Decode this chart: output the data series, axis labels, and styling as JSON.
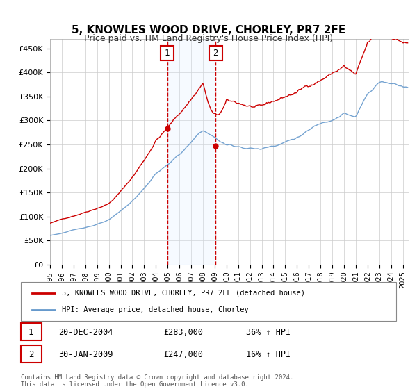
{
  "title": "5, KNOWLES WOOD DRIVE, CHORLEY, PR7 2FE",
  "subtitle": "Price paid vs. HM Land Registry's House Price Index (HPI)",
  "ylabel_ticks": [
    "£0",
    "£50K",
    "£100K",
    "£150K",
    "£200K",
    "£250K",
    "£300K",
    "£350K",
    "£400K",
    "£450K"
  ],
  "ytick_values": [
    0,
    50000,
    100000,
    150000,
    200000,
    250000,
    300000,
    350000,
    400000,
    450000
  ],
  "ylim": [
    0,
    470000
  ],
  "xlim_start": 1995.0,
  "xlim_end": 2025.5,
  "legend_line1": "5, KNOWLES WOOD DRIVE, CHORLEY, PR7 2FE (detached house)",
  "legend_line2": "HPI: Average price, detached house, Chorley",
  "sale1_label": "1",
  "sale1_date": "20-DEC-2004",
  "sale1_price": "£283,000",
  "sale1_hpi": "36% ↑ HPI",
  "sale1_year": 2004.97,
  "sale1_value": 283000,
  "sale2_label": "2",
  "sale2_date": "30-JAN-2009",
  "sale2_price": "£247,000",
  "sale2_hpi": "16% ↑ HPI",
  "sale2_year": 2009.08,
  "sale2_value": 247000,
  "red_color": "#cc0000",
  "blue_color": "#6699cc",
  "shade_color": "#ddeeff",
  "copyright_text": "Contains HM Land Registry data © Crown copyright and database right 2024.\nThis data is licensed under the Open Government Licence v3.0.",
  "xtick_years": [
    1995,
    1996,
    1997,
    1998,
    1999,
    2000,
    2001,
    2002,
    2003,
    2004,
    2005,
    2006,
    2007,
    2008,
    2009,
    2010,
    2011,
    2012,
    2013,
    2014,
    2015,
    2016,
    2017,
    2018,
    2019,
    2020,
    2021,
    2022,
    2023,
    2024,
    2025
  ]
}
